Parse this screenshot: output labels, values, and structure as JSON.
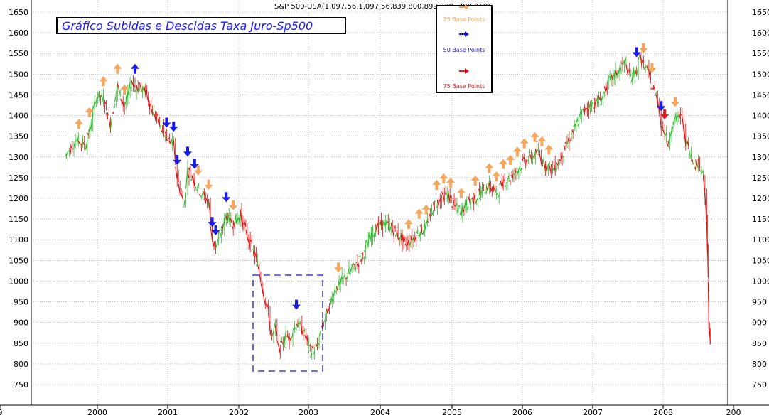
{
  "header": "S&P 500-USA(1,097.56,1,097.56,839.800,899.220,-200.010)",
  "title": "Gráfico Subidas e Descidas Taxa Juro-Sp500",
  "legend": [
    {
      "label": "25 Base Points",
      "color": "#f5a65b"
    },
    {
      "label": "50 Base Points",
      "color": "#1a1ae6"
    },
    {
      "label": "75 Base Points",
      "color": "#e61a1a"
    }
  ],
  "colors": {
    "up": "#33bb33",
    "down": "#dd1111",
    "grid": "#9a9a9a",
    "box": "#1a1acc"
  },
  "chart_data": {
    "type": "line",
    "title": "Gráfico Subidas e Descidas Taxa Juro-Sp500",
    "ylim": [
      715,
      1665
    ],
    "y_ticks": [
      750,
      800,
      850,
      900,
      950,
      1000,
      1050,
      1100,
      1150,
      1200,
      1250,
      1300,
      1350,
      1400,
      1450,
      1500,
      1550,
      1600,
      1650
    ],
    "x_ticks": [
      "9",
      "2000",
      "2001",
      "2002",
      "2003",
      "2004",
      "2005",
      "2006",
      "2007",
      "2008",
      "200"
    ],
    "series": [
      {
        "x": [
          1999.55,
          1999.7,
          1999.85,
          1999.95,
          2000.0,
          2000.1,
          2000.2,
          2000.3,
          2000.4,
          2000.5,
          2000.55,
          2000.7,
          2000.8,
          2000.9,
          2001.0,
          2001.1,
          2001.15,
          2001.25,
          2001.3,
          2001.4,
          2001.5,
          2001.6,
          2001.65,
          2001.7,
          2001.8,
          2001.85,
          2001.95,
          2002.05,
          2002.15,
          2002.3,
          2002.45,
          2002.5,
          2002.55,
          2002.6,
          2002.7,
          2002.75,
          2002.8,
          2002.85,
          2002.95,
          2003.05,
          2003.15,
          2003.2,
          2003.3,
          2003.4,
          2003.5,
          2003.6,
          2003.7,
          2003.8,
          2003.9,
          2004.0,
          2004.1,
          2004.2,
          2004.3,
          2004.4,
          2004.5,
          2004.6,
          2004.7,
          2004.8,
          2004.9,
          2005.0,
          2005.1,
          2005.2,
          2005.3,
          2005.4,
          2005.5,
          2005.6,
          2005.7,
          2005.8,
          2005.9,
          2006.0,
          2006.1,
          2006.2,
          2006.3,
          2006.4,
          2006.5,
          2006.6,
          2006.7,
          2006.8,
          2006.9,
          2007.0,
          2007.1,
          2007.2,
          2007.3,
          2007.4,
          2007.5,
          2007.55,
          2007.6,
          2007.7,
          2007.75,
          2007.8,
          2007.85,
          2007.9,
          2008.0,
          2008.05,
          2008.1,
          2008.15,
          2008.2,
          2008.3,
          2008.35,
          2008.4,
          2008.5,
          2008.6,
          2008.65,
          2008.7,
          2008.72,
          2008.73,
          2008.75
        ],
        "values": [
          1300,
          1340,
          1330,
          1400,
          1450,
          1440,
          1380,
          1470,
          1420,
          1480,
          1470,
          1460,
          1410,
          1380,
          1340,
          1330,
          1250,
          1180,
          1270,
          1240,
          1210,
          1190,
          1100,
          1080,
          1130,
          1160,
          1140,
          1160,
          1110,
          1040,
          920,
          860,
          890,
          830,
          870,
          860,
          880,
          900,
          880,
          830,
          840,
          880,
          930,
          980,
          1000,
          1020,
          1040,
          1060,
          1110,
          1130,
          1140,
          1130,
          1110,
          1090,
          1100,
          1120,
          1130,
          1180,
          1200,
          1210,
          1180,
          1170,
          1190,
          1200,
          1220,
          1230,
          1210,
          1240,
          1250,
          1270,
          1290,
          1300,
          1310,
          1280,
          1270,
          1290,
          1330,
          1360,
          1400,
          1420,
          1430,
          1440,
          1480,
          1500,
          1520,
          1530,
          1490,
          1510,
          1540,
          1520,
          1510,
          1480,
          1440,
          1380,
          1360,
          1330,
          1380,
          1400,
          1390,
          1340,
          1290,
          1280,
          1260,
          1150,
          1000,
          900,
          840
        ]
      }
    ],
    "annotations": [
      {
        "date": 1999.75,
        "kind": "25",
        "dir": "up"
      },
      {
        "date": 1999.9,
        "kind": "25",
        "dir": "up"
      },
      {
        "date": 2000.1,
        "kind": "25",
        "dir": "up"
      },
      {
        "date": 2000.3,
        "kind": "25",
        "dir": "up"
      },
      {
        "date": 2000.4,
        "kind": "25",
        "dir": "up"
      },
      {
        "date": 2000.55,
        "kind": "50",
        "dir": "up"
      },
      {
        "date": 2001.0,
        "kind": "50",
        "dir": "down"
      },
      {
        "date": 2001.1,
        "kind": "50",
        "dir": "down"
      },
      {
        "date": 2001.15,
        "kind": "50",
        "dir": "down"
      },
      {
        "date": 2001.3,
        "kind": "50",
        "dir": "down"
      },
      {
        "date": 2001.4,
        "kind": "50",
        "dir": "down"
      },
      {
        "date": 2001.45,
        "kind": "25",
        "dir": "down"
      },
      {
        "date": 2001.6,
        "kind": "25",
        "dir": "down"
      },
      {
        "date": 2001.65,
        "kind": "50",
        "dir": "down"
      },
      {
        "date": 2001.7,
        "kind": "50",
        "dir": "down"
      },
      {
        "date": 2001.85,
        "kind": "50",
        "dir": "down"
      },
      {
        "date": 2001.95,
        "kind": "25",
        "dir": "down"
      },
      {
        "date": 2002.85,
        "kind": "50",
        "dir": "down"
      },
      {
        "date": 2003.45,
        "kind": "25",
        "dir": "down"
      },
      {
        "date": 2004.45,
        "kind": "25",
        "dir": "up"
      },
      {
        "date": 2004.6,
        "kind": "25",
        "dir": "up"
      },
      {
        "date": 2004.7,
        "kind": "25",
        "dir": "up"
      },
      {
        "date": 2004.85,
        "kind": "25",
        "dir": "up"
      },
      {
        "date": 2004.95,
        "kind": "25",
        "dir": "up"
      },
      {
        "date": 2005.05,
        "kind": "25",
        "dir": "up"
      },
      {
        "date": 2005.2,
        "kind": "25",
        "dir": "up"
      },
      {
        "date": 2005.4,
        "kind": "25",
        "dir": "up"
      },
      {
        "date": 2005.6,
        "kind": "25",
        "dir": "up"
      },
      {
        "date": 2005.7,
        "kind": "25",
        "dir": "up"
      },
      {
        "date": 2005.8,
        "kind": "25",
        "dir": "up"
      },
      {
        "date": 2005.9,
        "kind": "25",
        "dir": "up"
      },
      {
        "date": 2006.0,
        "kind": "25",
        "dir": "up"
      },
      {
        "date": 2006.1,
        "kind": "25",
        "dir": "up"
      },
      {
        "date": 2006.25,
        "kind": "25",
        "dir": "up"
      },
      {
        "date": 2006.35,
        "kind": "25",
        "dir": "up"
      },
      {
        "date": 2006.45,
        "kind": "25",
        "dir": "up"
      },
      {
        "date": 2007.7,
        "kind": "50",
        "dir": "down"
      },
      {
        "date": 2007.8,
        "kind": "25",
        "dir": "down"
      },
      {
        "date": 2007.92,
        "kind": "25",
        "dir": "down"
      },
      {
        "date": 2008.05,
        "kind": "50",
        "dir": "down"
      },
      {
        "date": 2008.1,
        "kind": "75",
        "dir": "down"
      },
      {
        "date": 2008.25,
        "kind": "25",
        "dir": "down"
      }
    ]
  }
}
